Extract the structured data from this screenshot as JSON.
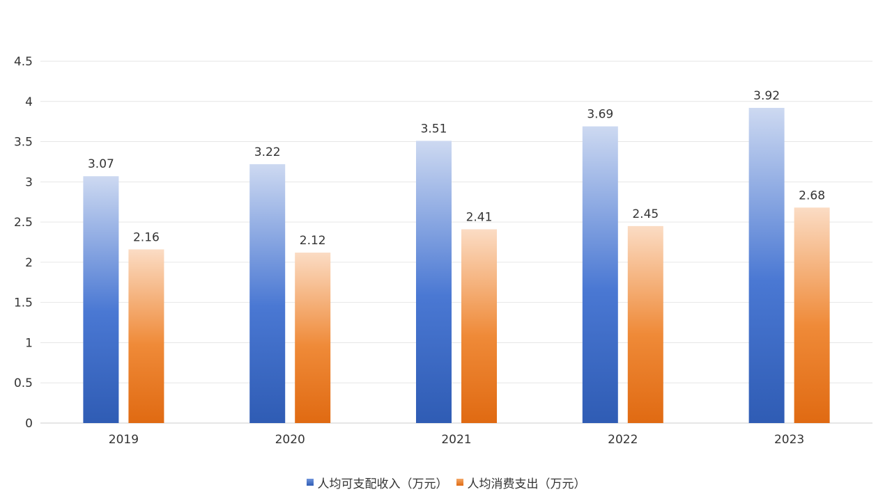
{
  "chart_data": {
    "type": "bar",
    "categories": [
      "2019",
      "2020",
      "2021",
      "2022",
      "2023"
    ],
    "series": [
      {
        "name": "人均可支配收入（万元）",
        "values": [
          3.07,
          3.22,
          3.51,
          3.69,
          3.92
        ],
        "color": "#3a6bc9"
      },
      {
        "name": "人均消费支出（万元）",
        "values": [
          2.16,
          2.12,
          2.41,
          2.45,
          2.68
        ],
        "color": "#e8761f"
      }
    ],
    "value_labels": {
      "series_0": [
        "3.07",
        "3.22",
        "3.51",
        "3.69",
        "3.92"
      ],
      "series_1": [
        "2.16",
        "2.12",
        "2.41",
        "2.45",
        "2.68"
      ]
    },
    "yticks": [
      "0",
      "0.5",
      "1",
      "1.5",
      "2",
      "2.5",
      "3",
      "3.5",
      "4",
      "4.5"
    ],
    "ylim": [
      0,
      4.5
    ],
    "grid": true,
    "legend_position": "bottom",
    "title": "",
    "xlabel": "",
    "ylabel": ""
  }
}
